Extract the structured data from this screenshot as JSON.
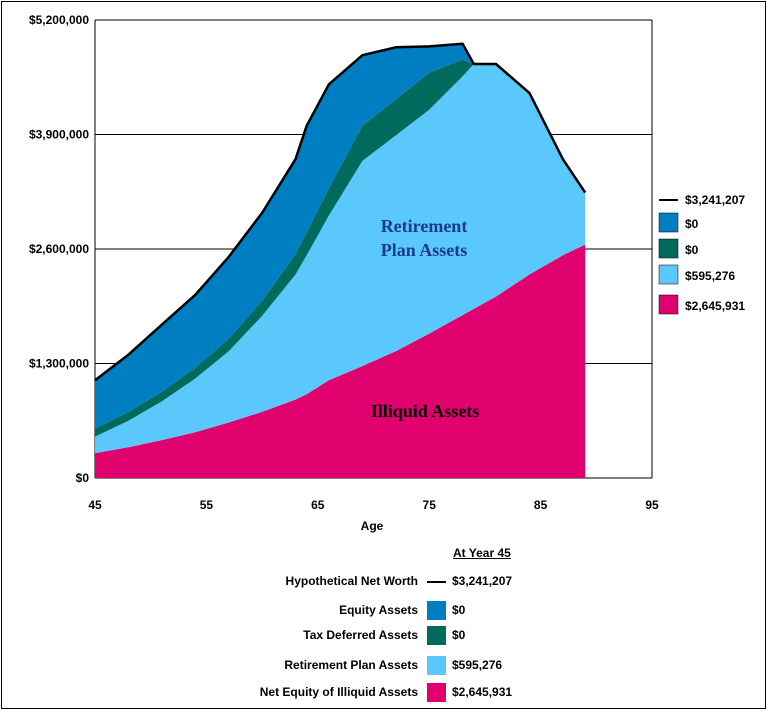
{
  "chart_data": {
    "type": "area",
    "xlabel": "Age",
    "ylabel": "",
    "xlim": [
      45,
      95
    ],
    "ylim": [
      0,
      5200000
    ],
    "x_ticks": [
      "45",
      "55",
      "65",
      "75",
      "85",
      "95"
    ],
    "y_ticks": [
      "$0",
      "$1,300,000",
      "$2,600,000",
      "$3,900,000",
      "$5,200,000"
    ],
    "grid": "horizontal",
    "x": [
      45,
      48,
      51,
      54,
      57,
      60,
      63,
      64,
      66,
      69,
      72,
      75,
      78,
      79,
      81,
      84,
      87,
      89
    ],
    "series": [
      {
        "name": "Net Equity of Illiquid Assets",
        "color": "#e0006e",
        "values": [
          280000,
          350000,
          430000,
          520000,
          630000,
          750000,
          890000,
          950000,
          1110000,
          1270000,
          1440000,
          1640000,
          1850000,
          1920000,
          2060000,
          2310000,
          2530000,
          2650000
        ]
      },
      {
        "name": "Retirement Plan Assets",
        "color": "#5ac8fa",
        "values": [
          190000,
          300000,
          440000,
          610000,
          810000,
          1090000,
          1420000,
          1580000,
          1870000,
          2330000,
          2450000,
          2540000,
          2710000,
          2780000,
          2640000,
          2060000,
          1090000,
          590000
        ]
      },
      {
        "name": "Tax Deferred Assets",
        "color": "#006b5c",
        "values": [
          90000,
          100000,
          110000,
          120000,
          140000,
          170000,
          230000,
          260000,
          310000,
          400000,
          410000,
          420000,
          190000,
          0,
          0,
          0,
          0,
          0
        ]
      },
      {
        "name": "Equity Assets",
        "color": "#007ec2",
        "values": [
          550000,
          650000,
          760000,
          830000,
          930000,
          1000000,
          1080000,
          1210000,
          1180000,
          800000,
          590000,
          300000,
          180000,
          0,
          0,
          0,
          0,
          0
        ]
      }
    ],
    "net_worth": {
      "name": "Hypothetical Net Worth",
      "values": [
        1110000,
        1400000,
        1740000,
        2080000,
        2510000,
        3010000,
        3620000,
        4000000,
        4470000,
        4800000,
        4890000,
        4900000,
        4930000,
        4700000,
        4700000,
        4370000,
        3620000,
        3240000
      ]
    },
    "area_labels": [
      "Retirement",
      "Plan Assets",
      "Illiquid  Assets"
    ],
    "side_legend": [
      "$3,241,207",
      "$0",
      "$0",
      "$595,276",
      "$2,645,931"
    ],
    "table": {
      "header": "At Year 45",
      "rows": [
        {
          "label": "Hypothetical Net Worth",
          "value": "$3,241,207",
          "kind": "line",
          "color": "#000000"
        },
        {
          "label": "Equity Assets",
          "value": "$0",
          "kind": "swatch",
          "color": "#007ec2"
        },
        {
          "label": "Tax Deferred Assets",
          "value": "$0",
          "kind": "swatch",
          "color": "#006b5c"
        },
        {
          "label": "Retirement Plan Assets",
          "value": "$595,276",
          "kind": "swatch",
          "color": "#5ac8fa"
        },
        {
          "label": "Net Equity of Illiquid Assets",
          "value": "$2,645,931",
          "kind": "swatch",
          "color": "#e0006e"
        }
      ]
    }
  }
}
